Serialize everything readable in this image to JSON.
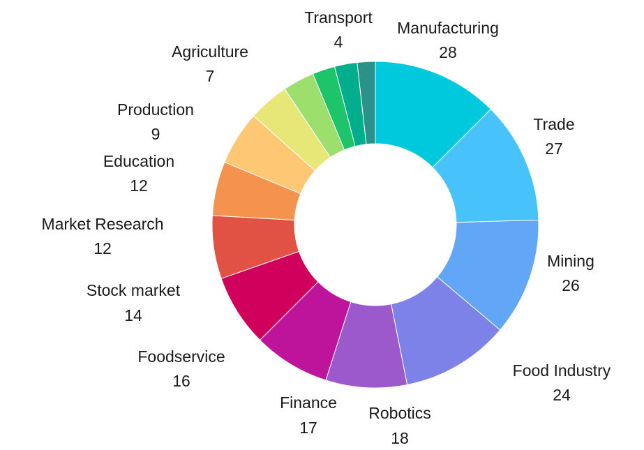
{
  "chart_data": {
    "type": "pie",
    "donut": true,
    "title": "",
    "legend": "none",
    "categories": [
      "Manufacturing",
      "Trade",
      "Mining",
      "Food Industry",
      "Robotics",
      "Finance",
      "Foodservice",
      "Stock market",
      "Market Research",
      "Education",
      "Production",
      "Agriculture",
      "",
      "",
      "Transport"
    ],
    "values": [
      28,
      27,
      26,
      24,
      18,
      17,
      16,
      14,
      12,
      12,
      9,
      7,
      5,
      5,
      4
    ],
    "colors": [
      "#00c8dd",
      "#48c2fb",
      "#62a6f8",
      "#7d82e8",
      "#9b59cc",
      "#be139b",
      "#d1005c",
      "#e15245",
      "#f5934e",
      "#fec774",
      "#e7e777",
      "#9cdf6c",
      "#1ec46a",
      "#00ad8c",
      "#2b9289",
      "#3a7380",
      "#1d5c7c"
    ],
    "labels": [
      {
        "name": "Manufacturing",
        "value": "28"
      },
      {
        "name": "Trade",
        "value": "27"
      },
      {
        "name": "Mining",
        "value": "26"
      },
      {
        "name": "Food Industry",
        "value": "24"
      },
      {
        "name": "Robotics",
        "value": "18"
      },
      {
        "name": "Finance",
        "value": "17"
      },
      {
        "name": "Foodservice",
        "value": "16"
      },
      {
        "name": "Stock market",
        "value": "14"
      },
      {
        "name": "Market Research",
        "value": "12"
      },
      {
        "name": "Education",
        "value": "12"
      },
      {
        "name": "Production",
        "value": "9"
      },
      {
        "name": "Agriculture",
        "value": "7"
      },
      {
        "name": "Transport",
        "value": "4"
      }
    ]
  }
}
